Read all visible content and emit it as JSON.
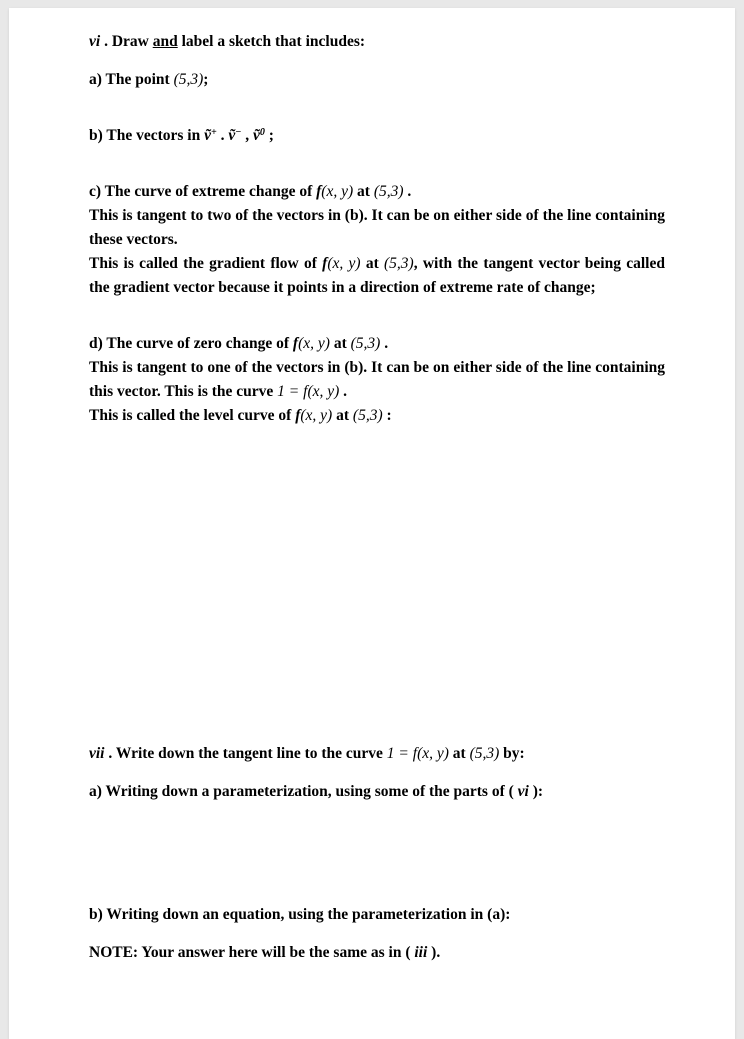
{
  "q_vi": {
    "header_a": "vi",
    "header_b": " . Draw ",
    "header_c": "and",
    "header_d": " label a sketch that includes:",
    "a": "a) The point ",
    "a_m": "(5,3)",
    "a_end": ";",
    "b_1": "b) The vectors in  ",
    "b_v1": "ṽ",
    "b_s1": "+",
    "b_dot": " .  ",
    "b_v2": "ṽ",
    "b_s2": "−",
    "b_comma": " ,  ",
    "b_v3": "ṽ",
    "b_s3": "0",
    "b_end": " ;",
    "c_l1_a": "c) The curve of extreme change of   ",
    "c_l1_f": "f",
    "c_l1_m": "(x, y)",
    "c_l1_b": " at ",
    "c_l1_p": "(5,3)",
    "c_l1_dot": " .",
    "c_l2": "This is tangent to two of the vectors in (b). It can be on either side of the line containing these vectors.",
    "c_l3_a": "This is called the gradient flow of  ",
    "c_l3_f": "f",
    "c_l3_m": "(x, y)",
    "c_l3_b": " at ",
    "c_l3_p": "(5,3)",
    "c_l3_c": ", with the tangent vector being called the gradient vector because it points in a direction of extreme rate of change;",
    "d_l1_a": "d) The curve of zero change of   ",
    "d_l1_f": "f",
    "d_l1_m": "(x, y)",
    "d_l1_b": " at ",
    "d_l1_p": "(5,3)",
    "d_l1_dot": " .",
    "d_l2_a": "This is tangent to one of the vectors in (b). It can be on either side of the line containing this vector. This is the curve ",
    "d_l2_eq": "1 = ",
    "d_l2_f": "f",
    "d_l2_m": "(x, y)",
    "d_l2_dot": " .",
    "d_l3_a": "This is called the level curve of   ",
    "d_l3_f": "f",
    "d_l3_m": "(x, y)",
    "d_l3_b": " at ",
    "d_l3_p": "(5,3)",
    "d_l3_c": " :"
  },
  "q_vii": {
    "h_a": "vii",
    "h_b": " . Write down the tangent line to the curve   ",
    "h_eq": "1 = ",
    "h_f": "f",
    "h_m": "(x, y)",
    "h_c": " at ",
    "h_p": "(5,3)",
    "h_d": " by:",
    "a_1": "a) Writing down a parameterization, using some of the parts of (",
    "a_vi": " vi ",
    "a_2": "):",
    "b": "b) Writing down an equation, using the parameterization in (a):",
    "note_1": "NOTE: Your answer here will be the same as in (",
    "note_i": " iii ",
    "note_2": ")."
  }
}
